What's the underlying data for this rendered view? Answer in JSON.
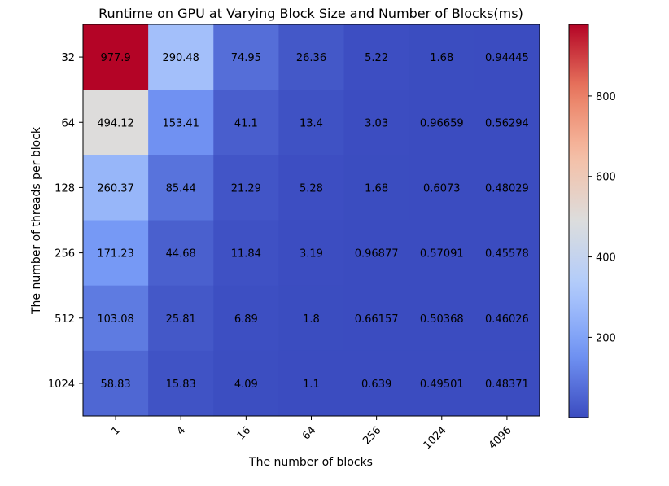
{
  "chart_data": {
    "type": "heatmap",
    "title": "Runtime on GPU at Varying Block Size and Number of Blocks(ms)",
    "xlabel": "The number of blocks",
    "ylabel": "The number of threads per block",
    "x_categories": [
      "1",
      "4",
      "16",
      "64",
      "256",
      "1024",
      "4096"
    ],
    "y_categories": [
      "32",
      "64",
      "128",
      "256",
      "512",
      "1024"
    ],
    "values": [
      [
        977.9,
        290.48,
        74.95,
        26.36,
        5.22,
        1.68,
        0.94445
      ],
      [
        494.12,
        153.41,
        41.1,
        13.4,
        3.03,
        0.96659,
        0.56294
      ],
      [
        260.37,
        85.44,
        21.29,
        5.28,
        1.68,
        0.6073,
        0.48029
      ],
      [
        171.23,
        44.68,
        11.84,
        3.19,
        0.96877,
        0.57091,
        0.45578
      ],
      [
        103.08,
        25.81,
        6.89,
        1.8,
        0.66157,
        0.50368,
        0.46026
      ],
      [
        58.83,
        15.83,
        4.09,
        1.1,
        0.639,
        0.49501,
        0.48371
      ]
    ],
    "cell_labels": [
      [
        "977.9",
        "290.48",
        "74.95",
        "26.36",
        "5.22",
        "1.68",
        "0.94445"
      ],
      [
        "494.12",
        "153.41",
        "41.1",
        "13.4",
        "3.03",
        "0.96659",
        "0.56294"
      ],
      [
        "260.37",
        "85.44",
        "21.29",
        "5.28",
        "1.68",
        "0.6073",
        "0.48029"
      ],
      [
        "171.23",
        "44.68",
        "11.84",
        "3.19",
        "0.96877",
        "0.57091",
        "0.45578"
      ],
      [
        "103.08",
        "25.81",
        "6.89",
        "1.8",
        "0.66157",
        "0.50368",
        "0.46026"
      ],
      [
        "58.83",
        "15.83",
        "4.09",
        "1.1",
        "0.639",
        "0.49501",
        "0.48371"
      ]
    ],
    "colormap": "coolwarm",
    "colormap_stops": [
      "#3b4cc0",
      "#7396f5",
      "#b0cbfc",
      "#dcdddd",
      "#f6bfa5",
      "#ea7b60",
      "#b40426"
    ],
    "color_range": [
      0.45578,
      977.9
    ],
    "colorbar_ticks": [
      200,
      400,
      600,
      800
    ],
    "colorbar_tick_labels": [
      "200",
      "400",
      "600",
      "800"
    ],
    "xtick_rotation": 45,
    "grid": false
  }
}
